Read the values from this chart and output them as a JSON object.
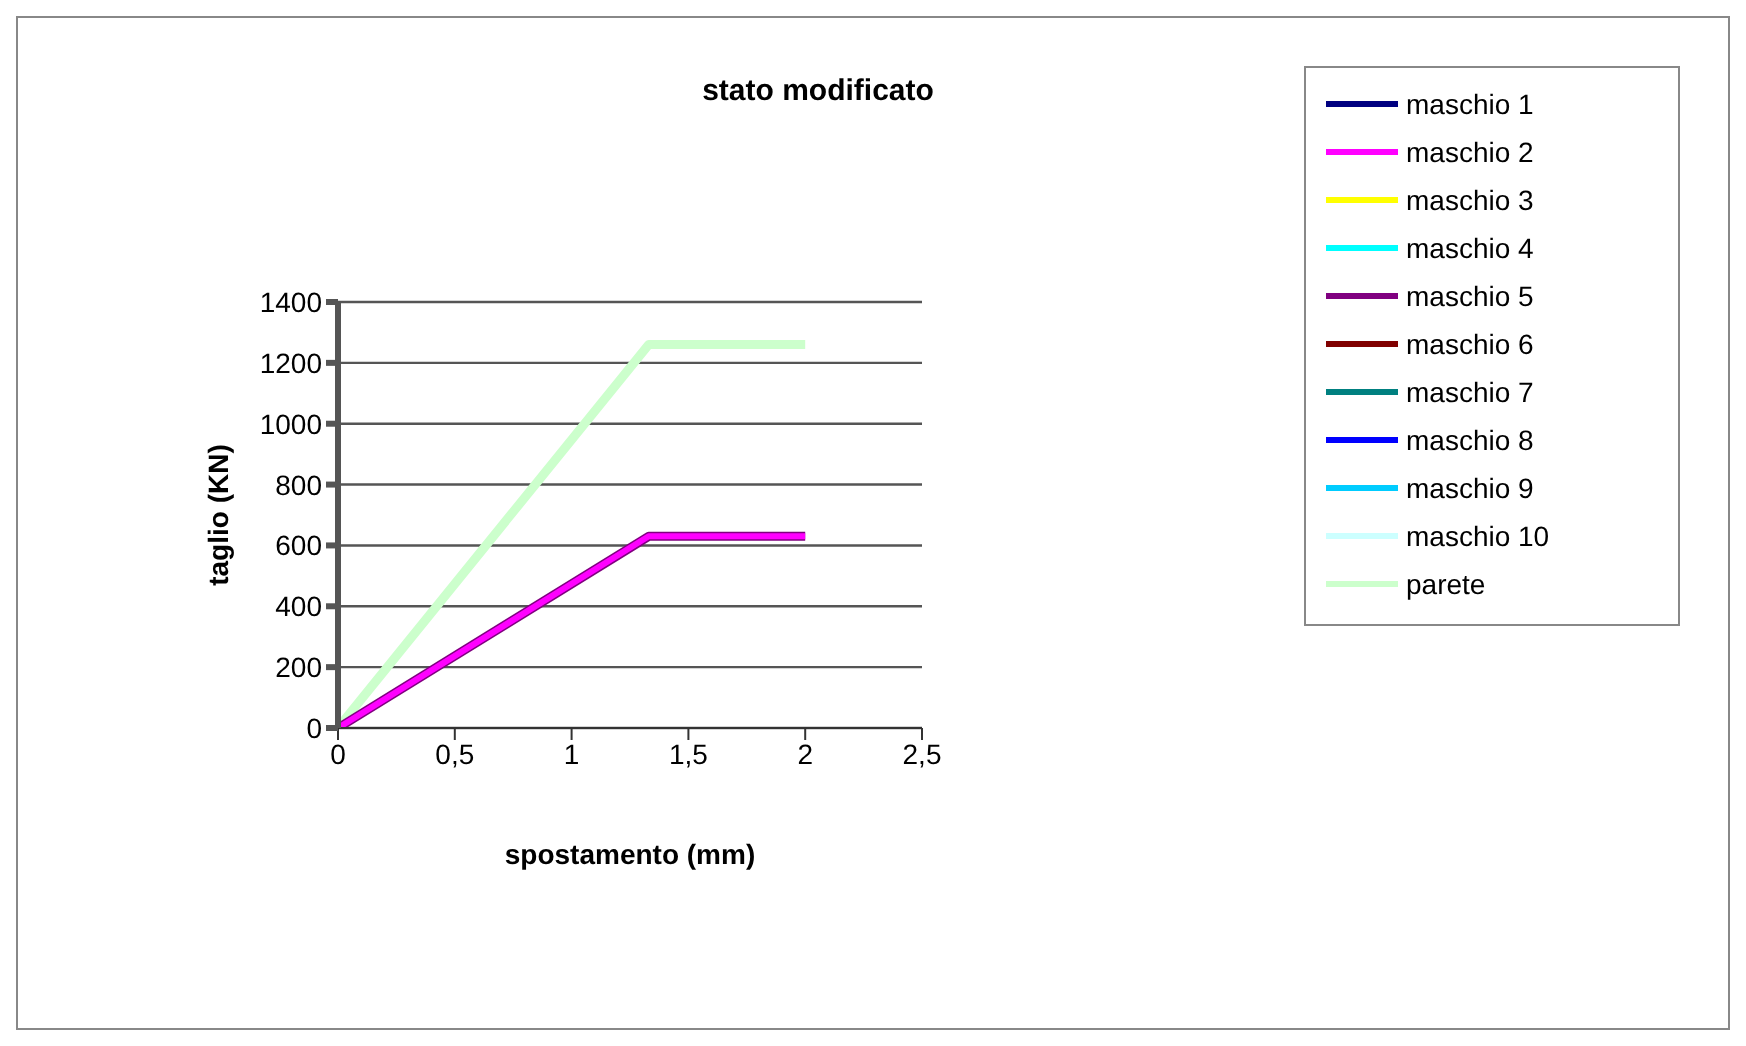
{
  "chart_data": {
    "type": "line",
    "title": "stato modificato",
    "xlabel": "spostamento (mm)",
    "ylabel": "taglio (KN)",
    "x": [
      0,
      1.33,
      2
    ],
    "xlim": [
      0,
      2.5
    ],
    "xticks": [
      0,
      {
        "value": 0.5,
        "label": "0,5"
      },
      1,
      {
        "value": 1.5,
        "label": "1,5"
      },
      2,
      {
        "value": 2.5,
        "label": "2,5"
      }
    ],
    "ylim": [
      0,
      1400
    ],
    "yticks": [
      0,
      200,
      400,
      600,
      800,
      1000,
      1200,
      1400
    ],
    "grid": "y",
    "legend": "right",
    "marker": "none",
    "line_style": "solid",
    "series": [
      {
        "name": "maschio 1",
        "color": "#000080",
        "values": [
          null,
          null,
          null
        ]
      },
      {
        "name": "maschio 2",
        "color": "#ff00ff",
        "values": [
          0,
          630,
          630
        ]
      },
      {
        "name": "maschio 3",
        "color": "#ffff00",
        "values": [
          null,
          null,
          null
        ]
      },
      {
        "name": "maschio 4",
        "color": "#00ffff",
        "values": [
          null,
          null,
          null
        ]
      },
      {
        "name": "maschio 5",
        "color": "#800080",
        "values": [
          0,
          630,
          630
        ]
      },
      {
        "name": "maschio 6",
        "color": "#800000",
        "values": [
          null,
          null,
          null
        ]
      },
      {
        "name": "maschio 7",
        "color": "#008080",
        "values": [
          null,
          null,
          null
        ]
      },
      {
        "name": "maschio 8",
        "color": "#0000ff",
        "values": [
          null,
          null,
          null
        ]
      },
      {
        "name": "maschio 9",
        "color": "#00ccff",
        "values": [
          null,
          null,
          null
        ]
      },
      {
        "name": "maschio 10",
        "color": "#ccffff",
        "values": [
          null,
          null,
          null
        ]
      },
      {
        "name": "parete",
        "color": "#ccffcc",
        "values": [
          0,
          1260,
          1260
        ]
      }
    ]
  }
}
